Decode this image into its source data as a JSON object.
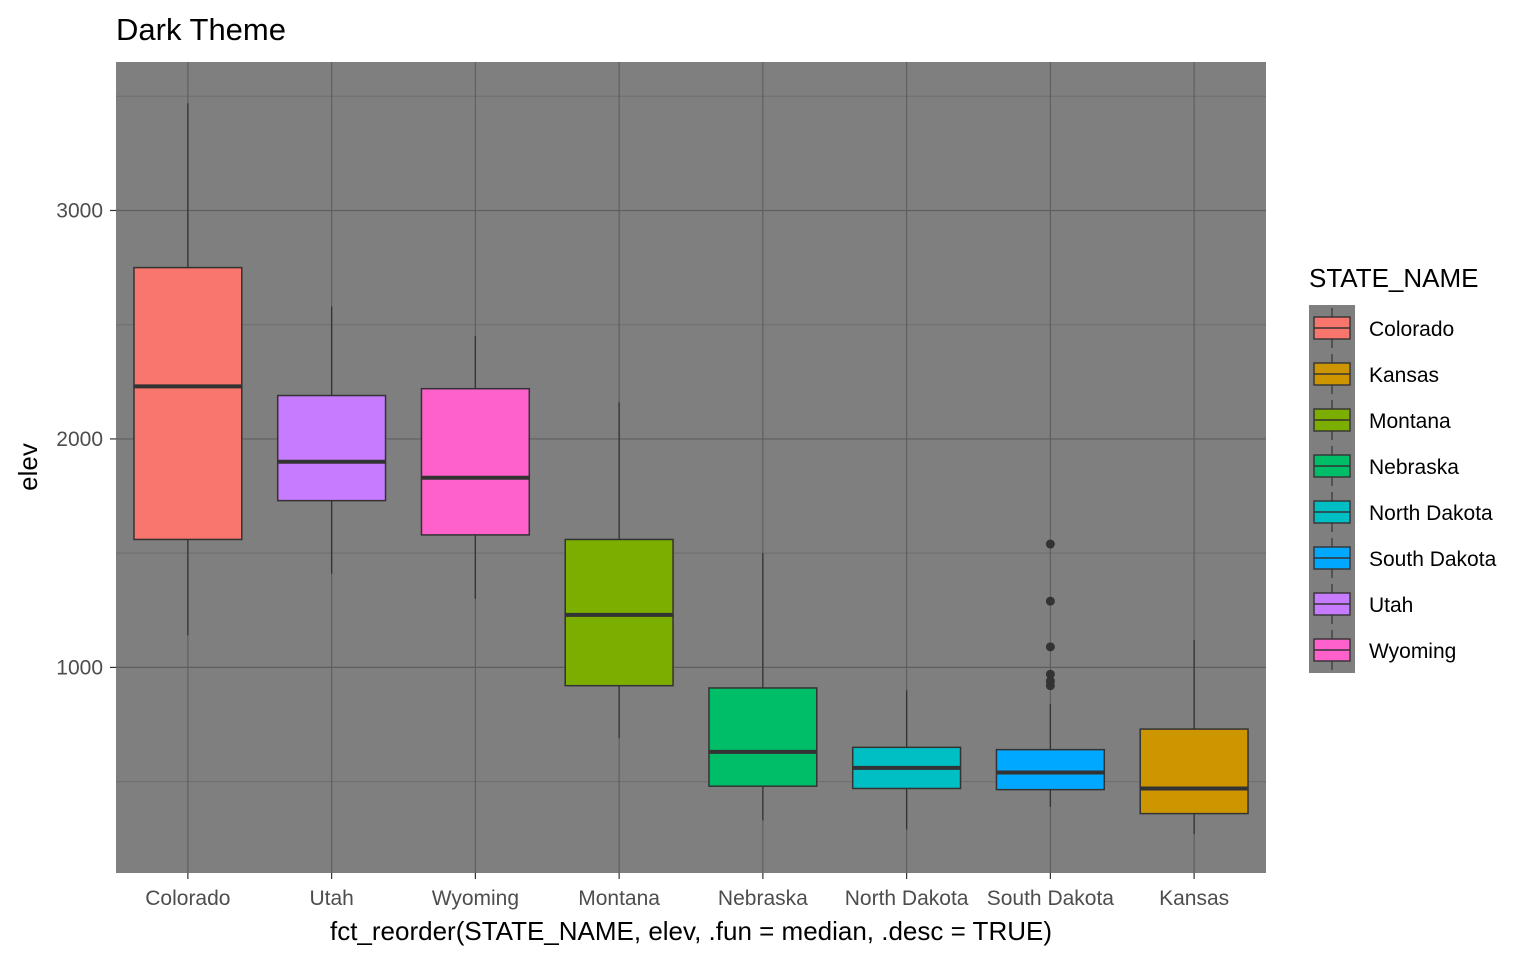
{
  "chart_data": {
    "type": "boxplot",
    "title": "Dark Theme",
    "xlabel": "fct_reorder(STATE_NAME, elev, .fun = median, .desc = TRUE)",
    "ylabel": "elev",
    "ylim": [
      100,
      3650
    ],
    "y_ticks": [
      1000,
      2000,
      3000
    ],
    "grid": true,
    "legend_position": "right",
    "colors": {
      "panel": "#7f7f7f",
      "grid_major": "#5f5f5f",
      "grid_minor": "#6e6e6e",
      "box_stroke": "#333333",
      "whisker": "#333333"
    },
    "categories": [
      "Colorado",
      "Utah",
      "Wyoming",
      "Montana",
      "Nebraska",
      "North Dakota",
      "South Dakota",
      "Kansas"
    ],
    "boxes": [
      {
        "category": "Colorado",
        "color": "#F8766D",
        "min": 1140,
        "q1": 1560,
        "median": 2230,
        "q3": 2750,
        "max": 3470,
        "outliers": []
      },
      {
        "category": "Utah",
        "color": "#C77CFF",
        "min": 1410,
        "q1": 1730,
        "median": 1900,
        "q3": 2190,
        "max": 2580,
        "outliers": []
      },
      {
        "category": "Wyoming",
        "color": "#FF61CC",
        "min": 1300,
        "q1": 1580,
        "median": 1830,
        "q3": 2220,
        "max": 2450,
        "outliers": []
      },
      {
        "category": "Montana",
        "color": "#7CAE00",
        "min": 690,
        "q1": 920,
        "median": 1230,
        "q3": 1560,
        "max": 2160,
        "outliers": []
      },
      {
        "category": "Nebraska",
        "color": "#00BE67",
        "min": 330,
        "q1": 480,
        "median": 630,
        "q3": 910,
        "max": 1500,
        "outliers": []
      },
      {
        "category": "North Dakota",
        "color": "#00BFC4",
        "min": 290,
        "q1": 470,
        "median": 560,
        "q3": 650,
        "max": 900,
        "outliers": []
      },
      {
        "category": "South Dakota",
        "color": "#00A9FF",
        "min": 390,
        "q1": 465,
        "median": 540,
        "q3": 640,
        "max": 840,
        "outliers": [
          920,
          940,
          970,
          1090,
          1290,
          1540
        ]
      },
      {
        "category": "Kansas",
        "color": "#CD9600",
        "min": 270,
        "q1": 360,
        "median": 470,
        "q3": 730,
        "max": 1120,
        "outliers": []
      }
    ],
    "legend": {
      "title": "STATE_NAME",
      "items": [
        {
          "label": "Colorado",
          "color": "#F8766D"
        },
        {
          "label": "Kansas",
          "color": "#CD9600"
        },
        {
          "label": "Montana",
          "color": "#7CAE00"
        },
        {
          "label": "Nebraska",
          "color": "#00BE67"
        },
        {
          "label": "North Dakota",
          "color": "#00BFC4"
        },
        {
          "label": "South Dakota",
          "color": "#00A9FF"
        },
        {
          "label": "Utah",
          "color": "#C77CFF"
        },
        {
          "label": "Wyoming",
          "color": "#FF61CC"
        }
      ]
    }
  }
}
